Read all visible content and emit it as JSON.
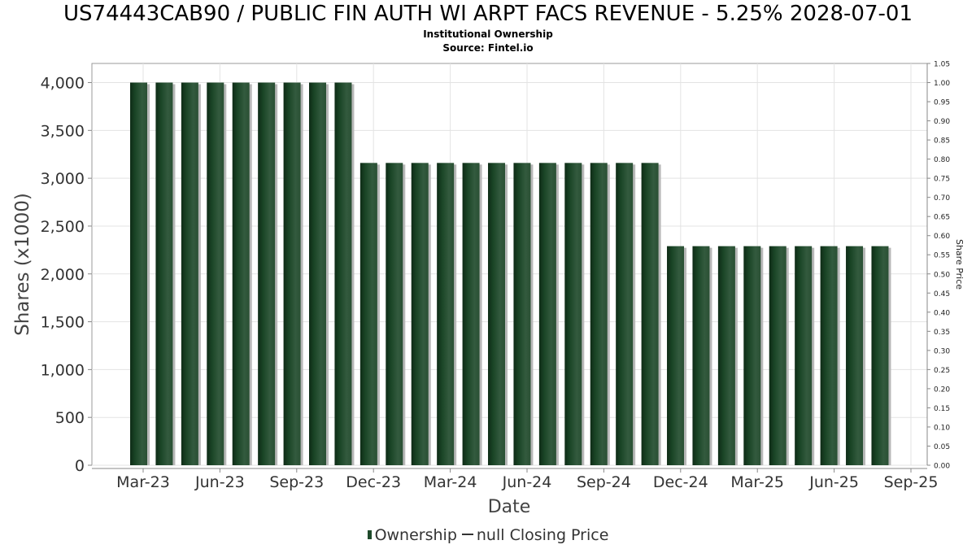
{
  "chart_data": {
    "type": "bar",
    "title": "US74443CAB90 / PUBLIC FIN AUTH WI ARPT FACS REVENUE - 5.25% 2028-07-01",
    "subtitle": "Institutional Ownership",
    "source": "Source: Fintel.io",
    "xlabel": "Date",
    "ylabel": "Shares (x1000)",
    "y2label": "Share Price",
    "x_tick_labels": [
      "Mar-23",
      "Jun-23",
      "Sep-23",
      "Dec-23",
      "Mar-24",
      "Jun-24",
      "Sep-24",
      "Dec-24",
      "Mar-25",
      "Jun-25",
      "Sep-25"
    ],
    "y_ticks": [
      "0",
      "500",
      "1,000",
      "1,500",
      "2,000",
      "2,500",
      "3,000",
      "3,500",
      "4,000"
    ],
    "y2_ticks": [
      "0.00",
      "0.05",
      "0.10",
      "0.15",
      "0.20",
      "0.25",
      "0.30",
      "0.35",
      "0.40",
      "0.45",
      "0.50",
      "0.55",
      "0.60",
      "0.65",
      "0.70",
      "0.75",
      "0.80",
      "0.85",
      "0.90",
      "0.95",
      "1.00",
      "1.05"
    ],
    "ylim": [
      0,
      4200
    ],
    "y2lim": [
      0,
      1.05
    ],
    "grid": true,
    "legend_position": "bottom",
    "series": [
      {
        "name": "Ownership",
        "color": "#1e4a2a",
        "values": [
          4000,
          4000,
          4000,
          4000,
          4000,
          4000,
          4000,
          4000,
          4000,
          3160,
          3160,
          3160,
          3160,
          3160,
          3160,
          3160,
          3160,
          3160,
          3160,
          3160,
          3160,
          2290,
          2290,
          2290,
          2290,
          2290,
          2290,
          2290,
          2290,
          2290
        ]
      },
      {
        "name": "null Closing Price",
        "color": "#333333",
        "values": []
      }
    ]
  }
}
